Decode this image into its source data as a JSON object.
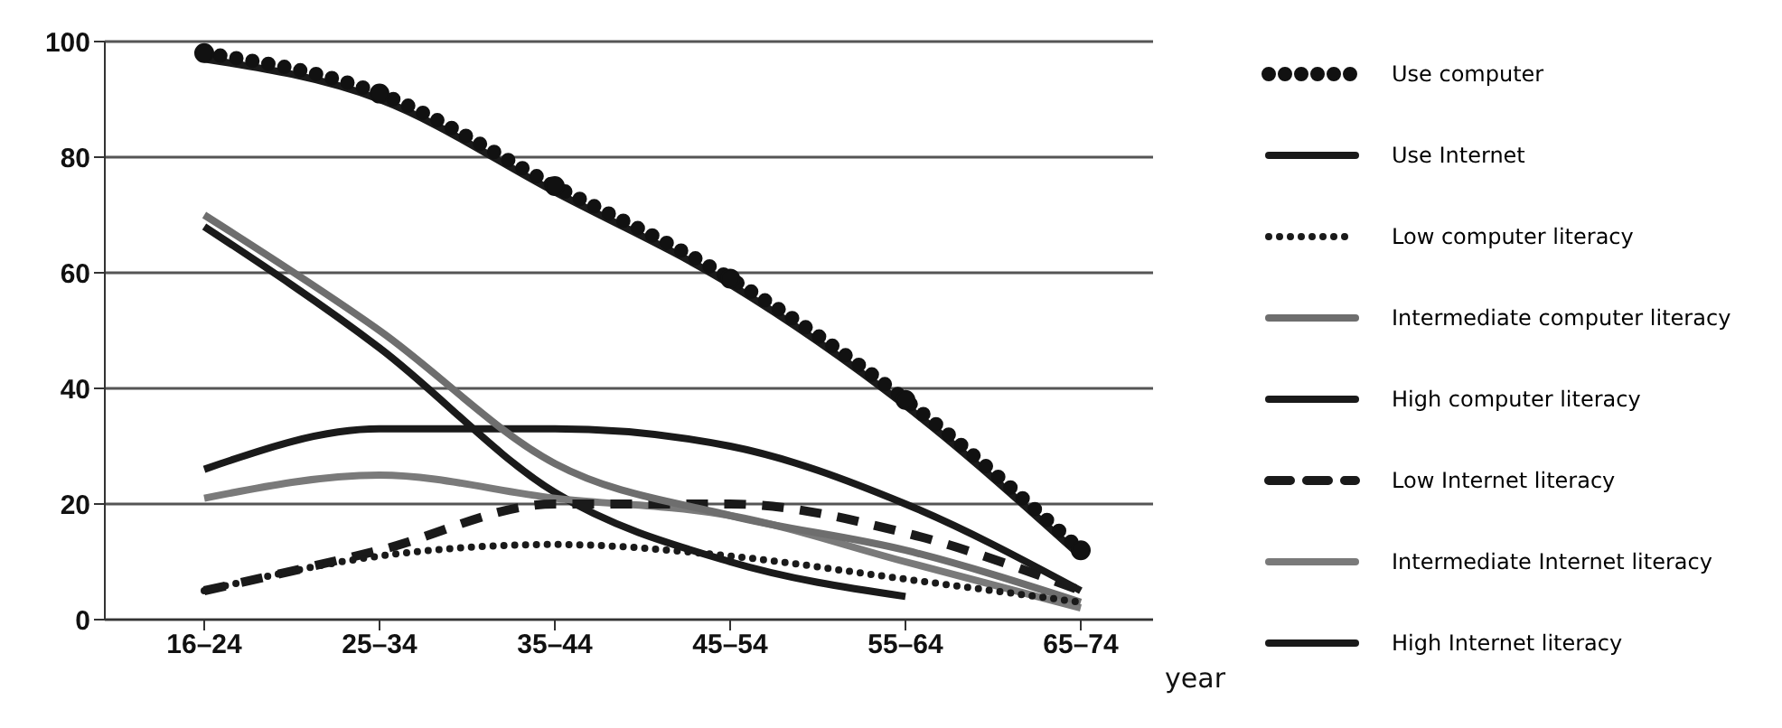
{
  "chart_data": {
    "type": "line",
    "xlabel": "year",
    "categories": [
      "16–24",
      "25–34",
      "35–44",
      "45–54",
      "55–64",
      "65–74"
    ],
    "series": [
      {
        "name": "Use computer",
        "color": "#111111",
        "line_style": "dotted",
        "marker": "circle",
        "values": [
          98,
          91,
          75,
          59,
          38,
          12
        ]
      },
      {
        "name": "Use Internet",
        "color": "#1a1a1a",
        "line_style": "solid",
        "values": [
          97,
          90,
          74,
          58,
          37,
          11
        ]
      },
      {
        "name": "Low computer literacy",
        "color": "#1a1a1a",
        "line_style": "dotted",
        "values": [
          5,
          11,
          13,
          11,
          7,
          3
        ]
      },
      {
        "name": "Intermediate computer literacy",
        "color": "#6e6e6e",
        "line_style": "solid",
        "values": [
          70,
          50,
          27,
          18,
          12,
          3
        ]
      },
      {
        "name": "High computer literacy",
        "color": "#1a1a1a",
        "line_style": "solid",
        "values": [
          26,
          33,
          33,
          30,
          20,
          5
        ]
      },
      {
        "name": "Low Internet literacy",
        "color": "#1a1a1a",
        "line_style": "dashed",
        "values": [
          5,
          12,
          20,
          20,
          15,
          5
        ]
      },
      {
        "name": "Intermediate Internet literacy",
        "color": "#7a7a7a",
        "line_style": "solid",
        "values": [
          21,
          25,
          21,
          18,
          10,
          2
        ]
      },
      {
        "name": "High Internet literacy",
        "color": "#1a1a1a",
        "line_style": "solid",
        "values": [
          68,
          47,
          22,
          10,
          4,
          null
        ]
      }
    ],
    "ylim": [
      0,
      100
    ],
    "yticks": [
      0,
      20,
      40,
      60,
      80,
      100
    ],
    "grid": "y",
    "legend": "right"
  }
}
